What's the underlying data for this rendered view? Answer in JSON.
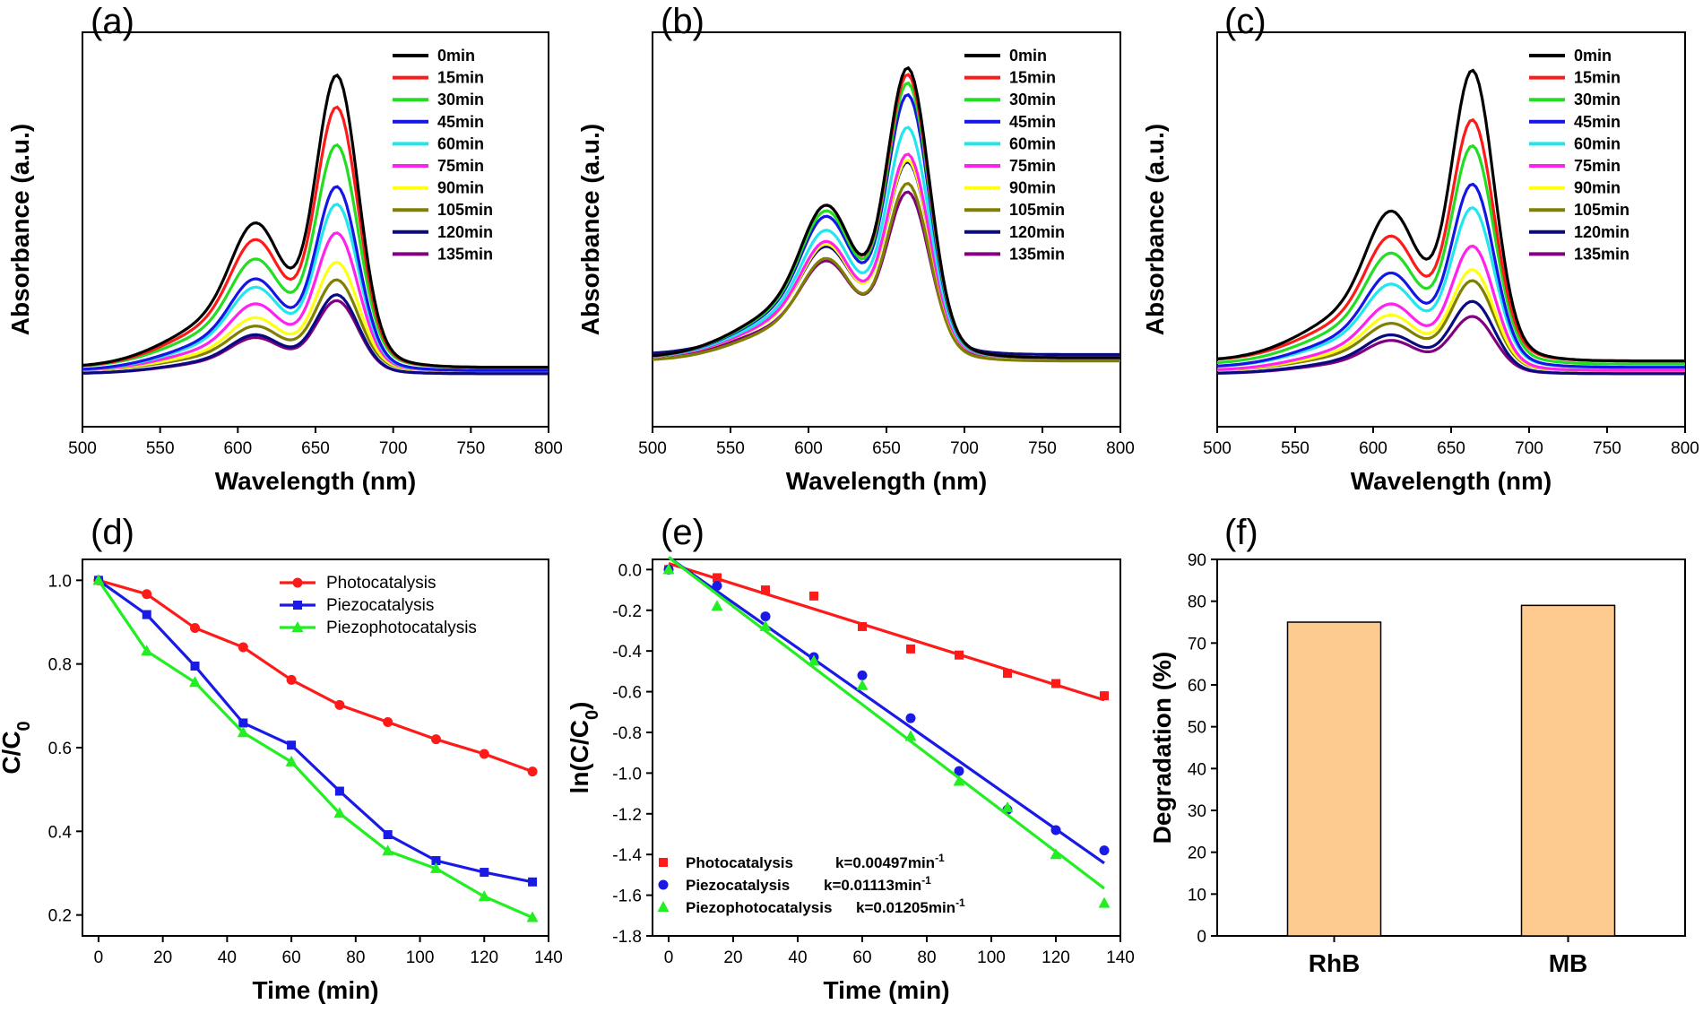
{
  "figure": {
    "panels": [
      {
        "letter": "(a)",
        "xlabel": "Wavelength (nm)",
        "ylabel": "Absorbance (a.u.)"
      },
      {
        "letter": "(b)",
        "xlabel": "Wavelength (nm)",
        "ylabel": "Absorbance (a.u.)"
      },
      {
        "letter": "(c)",
        "xlabel": "Wavelength (nm)",
        "ylabel": "Absorbance (a.u.)"
      },
      {
        "letter": "(d)",
        "xlabel": "Time (min)",
        "ylabel": "C/C0"
      },
      {
        "letter": "(e)",
        "xlabel": "Time (min)",
        "ylabel": "ln(C/C0)"
      },
      {
        "letter": "(f)",
        "xlabel": "",
        "ylabel": "Degradation (%)"
      }
    ]
  },
  "chart_data": [
    {
      "panel": "(a)",
      "type": "line",
      "xlabel": "Wavelength (nm)",
      "ylabel": "Absorbance (a.u.)",
      "xlim": [
        500,
        800
      ],
      "xticks": [
        500,
        550,
        600,
        650,
        700,
        750,
        800
      ],
      "yticks_shown": false,
      "legend_position": "top-right",
      "baseline": 0.06,
      "series": [
        {
          "name": "0min",
          "color": "#000000",
          "peak": 1.0,
          "shoulder": 0.52,
          "base": 0.06
        },
        {
          "name": "15min",
          "color": "#ff1a1a",
          "peak": 0.89,
          "shoulder": 0.46,
          "base": 0.06
        },
        {
          "name": "30min",
          "color": "#22dd22",
          "peak": 0.76,
          "shoulder": 0.39,
          "base": 0.06
        },
        {
          "name": "45min",
          "color": "#1515e6",
          "peak": 0.63,
          "shoulder": 0.33,
          "base": 0.05
        },
        {
          "name": "60min",
          "color": "#22e6ee",
          "peak": 0.57,
          "shoulder": 0.3,
          "base": 0.05
        },
        {
          "name": "75min",
          "color": "#ff22ee",
          "peak": 0.47,
          "shoulder": 0.24,
          "base": 0.05
        },
        {
          "name": "90min",
          "color": "#ffff10",
          "peak": 0.37,
          "shoulder": 0.19,
          "base": 0.05
        },
        {
          "name": "105min",
          "color": "#808000",
          "peak": 0.31,
          "shoulder": 0.16,
          "base": 0.05
        },
        {
          "name": "120min",
          "color": "#0a0a80",
          "peak": 0.27,
          "shoulder": 0.14,
          "base": 0.04
        },
        {
          "name": "135min",
          "color": "#800080",
          "peak": 0.25,
          "shoulder": 0.13,
          "base": 0.04
        }
      ]
    },
    {
      "panel": "(b)",
      "type": "line",
      "xlabel": "Wavelength (nm)",
      "ylabel": "Absorbance (a.u.)",
      "xlim": [
        500,
        800
      ],
      "xticks": [
        500,
        550,
        600,
        650,
        700,
        750,
        800
      ],
      "yticks_shown": false,
      "legend_position": "top-right",
      "series": [
        {
          "name": "0min",
          "color": "#000000",
          "peak": 1.0,
          "shoulder": 0.55,
          "base": 0.09
        },
        {
          "name": "15min",
          "color": "#ff1a1a",
          "peak": 0.98,
          "shoulder": 0.55,
          "base": 0.09
        },
        {
          "name": "30min",
          "color": "#22dd22",
          "peak": 0.95,
          "shoulder": 0.53,
          "base": 0.09
        },
        {
          "name": "45min",
          "color": "#1515e6",
          "peak": 0.91,
          "shoulder": 0.51,
          "base": 0.09
        },
        {
          "name": "60min",
          "color": "#22e6ee",
          "peak": 0.8,
          "shoulder": 0.46,
          "base": 0.09
        },
        {
          "name": "75min",
          "color": "#ff22ee",
          "peak": 0.71,
          "shoulder": 0.42,
          "base": 0.09
        },
        {
          "name": "90min",
          "color": "#ffff10",
          "peak": 0.69,
          "shoulder": 0.41,
          "base": 0.09
        },
        {
          "name": "105min",
          "color": "#808000",
          "peak": 0.62,
          "shoulder": 0.37,
          "base": 0.08
        },
        {
          "name": "120min",
          "color": "#0a0a80",
          "peak": 0.67,
          "shoulder": 0.39,
          "base": 0.1
        },
        {
          "name": "135min",
          "color": "#800080",
          "peak": 0.58,
          "shoulder": 0.35,
          "base": 0.09
        }
      ]
    },
    {
      "panel": "(c)",
      "type": "line",
      "xlabel": "Wavelength (nm)",
      "ylabel": "Absorbance (a.u.)",
      "xlim": [
        500,
        800
      ],
      "xticks": [
        500,
        550,
        600,
        650,
        700,
        750,
        800
      ],
      "yticks_shown": false,
      "legend_position": "top-right",
      "series": [
        {
          "name": "0min",
          "color": "#000000",
          "peak": 1.0,
          "shoulder": 0.54,
          "base": 0.08
        },
        {
          "name": "15min",
          "color": "#ff1a1a",
          "peak": 0.83,
          "shoulder": 0.45,
          "base": 0.08
        },
        {
          "name": "30min",
          "color": "#22dd22",
          "peak": 0.75,
          "shoulder": 0.4,
          "base": 0.07
        },
        {
          "name": "45min",
          "color": "#1515e6",
          "peak": 0.63,
          "shoulder": 0.34,
          "base": 0.06
        },
        {
          "name": "60min",
          "color": "#22e6ee",
          "peak": 0.55,
          "shoulder": 0.3,
          "base": 0.06
        },
        {
          "name": "75min",
          "color": "#ff22ee",
          "peak": 0.43,
          "shoulder": 0.24,
          "base": 0.05
        },
        {
          "name": "90min",
          "color": "#ffff10",
          "peak": 0.35,
          "shoulder": 0.2,
          "base": 0.05
        },
        {
          "name": "105min",
          "color": "#808000",
          "peak": 0.31,
          "shoulder": 0.17,
          "base": 0.05
        },
        {
          "name": "120min",
          "color": "#0a0a80",
          "peak": 0.25,
          "shoulder": 0.14,
          "base": 0.04
        },
        {
          "name": "135min",
          "color": "#800080",
          "peak": 0.2,
          "shoulder": 0.12,
          "base": 0.04
        }
      ]
    },
    {
      "panel": "(d)",
      "type": "line",
      "xlabel": "Time (min)",
      "ylabel": "C/C0",
      "xlim": [
        -5,
        140
      ],
      "ylim": [
        0.15,
        1.05
      ],
      "xticks": [
        0,
        20,
        40,
        60,
        80,
        100,
        120,
        140
      ],
      "yticks": [
        0.2,
        0.4,
        0.6,
        0.8,
        1.0
      ],
      "legend_position": "top-right",
      "x": [
        0,
        15,
        30,
        45,
        60,
        75,
        90,
        105,
        120,
        135
      ],
      "series": [
        {
          "name": "Photocatalysis",
          "color": "#ff1a1a",
          "marker": "circle",
          "values": [
            1.0,
            0.967,
            0.886,
            0.84,
            0.762,
            0.702,
            0.661,
            0.62,
            0.585,
            0.543
          ]
        },
        {
          "name": "Piezocatalysis",
          "color": "#1a1ae6",
          "marker": "square",
          "values": [
            1.0,
            0.918,
            0.795,
            0.659,
            0.606,
            0.496,
            0.392,
            0.33,
            0.302,
            0.279
          ]
        },
        {
          "name": "Piezophotocatalysis",
          "color": "#22ee22",
          "marker": "triangle",
          "values": [
            1.0,
            0.831,
            0.756,
            0.636,
            0.566,
            0.443,
            0.353,
            0.311,
            0.244,
            0.194
          ]
        }
      ]
    },
    {
      "panel": "(e)",
      "type": "scatter",
      "xlabel": "Time (min)",
      "ylabel": "ln(C/C0)",
      "xlim": [
        -5,
        140
      ],
      "ylim": [
        -1.8,
        0.05
      ],
      "xticks": [
        0,
        20,
        40,
        60,
        80,
        100,
        120,
        140
      ],
      "yticks": [
        0.0,
        -0.2,
        -0.4,
        -0.6,
        -0.8,
        -1.0,
        -1.2,
        -1.4,
        -1.6,
        -1.8
      ],
      "legend_position": "bottom-left",
      "x": [
        0,
        15,
        30,
        45,
        60,
        75,
        90,
        105,
        120,
        135
      ],
      "series": [
        {
          "name": "Photocatalysis",
          "k_label": "k=0.00497min",
          "color": "#ff1a1a",
          "marker": "square",
          "values": [
            0.0,
            -0.04,
            -0.1,
            -0.13,
            -0.28,
            -0.39,
            -0.42,
            -0.51,
            -0.56,
            -0.62
          ],
          "fit": {
            "intercept": 0.03,
            "slope": -0.00497
          }
        },
        {
          "name": "Piezocatalysis",
          "k_label": "k=0.01113min",
          "color": "#1a1ae6",
          "marker": "circle",
          "values": [
            0.0,
            -0.08,
            -0.23,
            -0.43,
            -0.52,
            -0.73,
            -0.99,
            -1.18,
            -1.28,
            -1.38
          ],
          "fit": {
            "intercept": 0.06,
            "slope": -0.01113
          }
        },
        {
          "name": "Piezophotocatalysis",
          "k_label": "k=0.01205min",
          "color": "#22ee22",
          "marker": "triangle",
          "values": [
            0.0,
            -0.18,
            -0.28,
            -0.45,
            -0.57,
            -0.82,
            -1.04,
            -1.17,
            -1.4,
            -1.64
          ],
          "fit": {
            "intercept": 0.06,
            "slope": -0.01205
          }
        }
      ]
    },
    {
      "panel": "(f)",
      "type": "bar",
      "xlabel": "",
      "ylabel": "Degradation (%)",
      "ylim": [
        0,
        90
      ],
      "yticks": [
        0,
        10,
        20,
        30,
        40,
        50,
        60,
        70,
        80,
        90
      ],
      "categories": [
        "RhB",
        "MB"
      ],
      "values": [
        75,
        79
      ],
      "color": "#fdcb8f"
    }
  ]
}
